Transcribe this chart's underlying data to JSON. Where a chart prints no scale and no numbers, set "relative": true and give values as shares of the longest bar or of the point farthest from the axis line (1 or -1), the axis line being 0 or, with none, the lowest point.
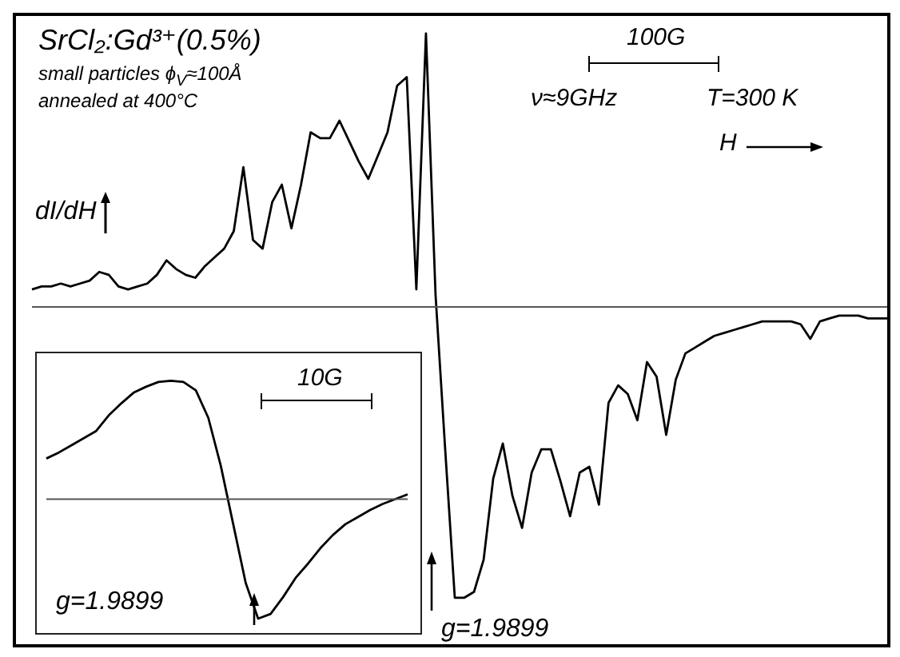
{
  "chart_data": [
    {
      "type": "line",
      "title": "SrCl₂:Gd³⁺(0.5%)",
      "ylabel": "dI/dH",
      "relative": true,
      "color": "#000000",
      "annotations": [
        "small particles ϕ$_{V}$≈100Å",
        "annealed at 400°C",
        "100G",
        "ν≈9GHz",
        "T=300 K",
        "H",
        "g=1.9899"
      ],
      "categories": [
        null,
        null,
        null,
        null,
        null,
        null,
        null,
        null,
        null,
        null,
        null,
        null,
        null,
        null,
        null,
        null,
        null,
        null,
        null,
        null,
        null,
        null,
        null,
        null,
        null,
        null,
        null,
        null,
        null,
        null,
        null,
        null,
        null,
        null,
        null,
        null,
        null,
        null,
        null,
        null,
        null,
        null,
        null,
        null,
        null,
        null,
        null,
        null,
        null,
        null,
        null,
        null,
        null,
        null,
        null,
        null,
        null,
        null,
        null,
        null,
        null,
        null,
        null,
        null,
        null,
        null,
        null,
        null,
        null,
        null,
        null,
        null,
        null,
        null,
        null,
        null,
        null,
        null,
        null,
        null,
        null,
        null,
        null,
        null,
        null,
        null,
        null,
        null,
        null,
        null
      ],
      "values": [
        0.06,
        0.07,
        0.07,
        0.08,
        0.07,
        0.08,
        0.09,
        0.12,
        0.11,
        0.07,
        0.06,
        0.07,
        0.08,
        0.11,
        0.16,
        0.13,
        0.11,
        0.1,
        0.14,
        0.17,
        0.2,
        0.26,
        0.48,
        0.23,
        0.2,
        0.36,
        0.42,
        0.27,
        0.42,
        0.6,
        0.58,
        0.58,
        0.64,
        0.57,
        0.5,
        0.44,
        0.52,
        0.6,
        0.76,
        0.79,
        0.06,
        0.94,
        0.04,
        -0.49,
        -1,
        -1,
        -0.98,
        -0.87,
        -0.59,
        -0.47,
        -0.65,
        -0.76,
        -0.57,
        -0.49,
        -0.49,
        -0.6,
        -0.72,
        -0.57,
        -0.55,
        -0.68,
        -0.33,
        -0.27,
        -0.3,
        -0.39,
        -0.19,
        -0.24,
        -0.44,
        -0.25,
        -0.16,
        -0.14,
        -0.12,
        -0.1,
        -0.09,
        -0.08,
        -0.07,
        -0.06,
        -0.05,
        -0.05,
        -0.05,
        -0.05,
        -0.06,
        -0.11,
        -0.05,
        -0.04,
        -0.03,
        -0.03,
        -0.03,
        -0.04,
        -0.04,
        -0.04
      ]
    },
    {
      "type": "line",
      "relative": true,
      "color": "#000000",
      "annotations": [
        "10G",
        "g=1.9899"
      ],
      "categories": [
        null,
        null,
        null,
        null,
        null,
        null,
        null,
        null,
        null,
        null,
        null,
        null,
        null,
        null,
        null,
        null,
        null,
        null,
        null,
        null,
        null,
        null,
        null,
        null,
        null,
        null,
        null,
        null,
        null,
        null
      ],
      "values": [
        0.34,
        0.39,
        0.45,
        0.51,
        0.57,
        0.7,
        0.8,
        0.89,
        0.94,
        0.98,
        0.99,
        0.98,
        0.91,
        0.68,
        0.28,
        -0.21,
        -0.7,
        -1,
        -0.96,
        -0.82,
        -0.66,
        -0.54,
        -0.41,
        -0.3,
        -0.21,
        -0.15,
        -0.09,
        -0.04,
        0,
        0.04
      ]
    }
  ]
}
